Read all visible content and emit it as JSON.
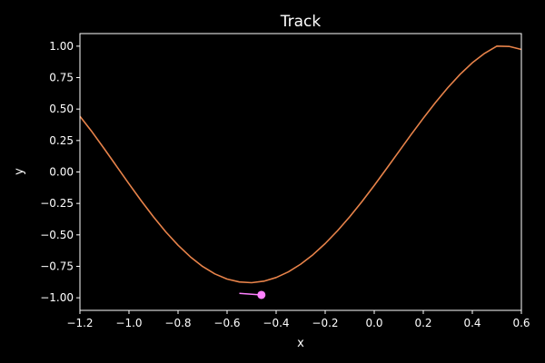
{
  "chart_data": {
    "type": "line",
    "title": "Track",
    "xlabel": "x",
    "ylabel": "y",
    "xlim": [
      -1.2,
      0.6
    ],
    "ylim": [
      -1.1,
      1.1
    ],
    "xticks": [
      -1.2,
      -1.0,
      -0.8,
      -0.6,
      -0.4,
      -0.2,
      0.0,
      0.2,
      0.4,
      0.6
    ],
    "xtick_labels": [
      "−1.2",
      "−1.0",
      "−0.8",
      "−0.6",
      "−0.4",
      "−0.2",
      "0.0",
      "0.2",
      "0.4",
      "0.6"
    ],
    "yticks": [
      1.0,
      0.75,
      0.5,
      0.25,
      0.0,
      -0.25,
      -0.5,
      -0.75,
      -1.0
    ],
    "ytick_labels": [
      "1.00",
      "0.75",
      "0.50",
      "0.25",
      "0.00",
      "−0.25",
      "−0.50",
      "−0.75",
      "−1.00"
    ],
    "grid": false,
    "series": [
      {
        "color": "#e8834a",
        "x": [
          -1.2,
          -1.15,
          -1.1,
          -1.05,
          -1.0,
          -0.95,
          -0.9,
          -0.85,
          -0.8,
          -0.75,
          -0.7,
          -0.65,
          -0.6,
          -0.55,
          -0.5,
          -0.45,
          -0.4,
          -0.35,
          -0.3,
          -0.25,
          -0.2,
          -0.15,
          -0.1,
          -0.05,
          0.0,
          0.05,
          0.1,
          0.15,
          0.2,
          0.25,
          0.3,
          0.35,
          0.4,
          0.45,
          0.5,
          0.55,
          0.6
        ],
        "y": [
          0.443,
          0.317,
          0.182,
          0.044,
          -0.094,
          -0.229,
          -0.357,
          -0.476,
          -0.582,
          -0.674,
          -0.751,
          -0.81,
          -0.851,
          -0.874,
          -0.88,
          -0.868,
          -0.839,
          -0.794,
          -0.733,
          -0.658,
          -0.569,
          -0.468,
          -0.356,
          -0.235,
          -0.107,
          0.026,
          0.161,
          0.296,
          0.427,
          0.553,
          0.67,
          0.776,
          0.868,
          0.943,
          1.0,
          0.998,
          0.974
        ]
      }
    ],
    "marker": {
      "x": -0.46,
      "y": -0.977,
      "color": "#ff80ff",
      "trail": {
        "x": [
          -0.55,
          -0.46
        ],
        "y": [
          -0.965,
          -0.977
        ],
        "color": "#ff80ff"
      }
    }
  }
}
